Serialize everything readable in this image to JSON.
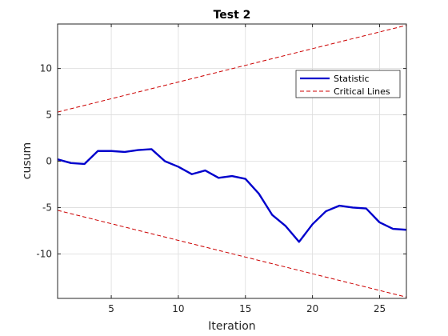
{
  "chart_data": {
    "type": "line",
    "title": "Test 2",
    "xlabel": "Iteration",
    "ylabel": "cusum",
    "xlim": [
      1,
      27
    ],
    "ylim": [
      -14.8,
      14.8
    ],
    "xticks": [
      5,
      10,
      15,
      20,
      25
    ],
    "yticks": [
      -10,
      -5,
      0,
      5,
      10
    ],
    "xtick_labels": [
      "5",
      "10",
      "15",
      "20",
      "25"
    ],
    "ytick_labels": [
      "-10",
      "-5",
      "0",
      "5",
      "10"
    ],
    "grid": true,
    "legend_position": "top-right",
    "x": [
      1,
      2,
      3,
      4,
      5,
      6,
      7,
      8,
      9,
      10,
      11,
      12,
      13,
      14,
      15,
      16,
      17,
      18,
      19,
      20,
      21,
      22,
      23,
      24,
      25,
      26,
      27
    ],
    "series": [
      {
        "name": "Statistic",
        "style": "solid",
        "color": "#0000cc",
        "values": [
          0.2,
          -0.2,
          -0.3,
          1.1,
          1.1,
          1.0,
          1.2,
          1.3,
          0.0,
          -0.6,
          -1.4,
          -1.0,
          -1.8,
          -1.6,
          -1.9,
          -3.5,
          -5.8,
          -7.0,
          -8.7,
          -6.8,
          -5.4,
          -4.8,
          -5.0,
          -5.1,
          -6.6,
          -7.3,
          -7.4
        ]
      },
      {
        "name": "Critical Lines",
        "style": "dashed",
        "color": "#cc0000",
        "values": [
          5.3,
          5.66,
          6.02,
          6.38,
          6.74,
          7.1,
          7.46,
          7.82,
          8.18,
          8.54,
          8.9,
          9.26,
          9.62,
          9.98,
          10.34,
          10.7,
          11.06,
          11.42,
          11.78,
          12.14,
          12.5,
          12.86,
          13.22,
          13.58,
          13.94,
          14.3,
          14.66
        ]
      },
      {
        "name": "",
        "style": "dashed",
        "color": "#cc0000",
        "values": [
          -5.3,
          -5.66,
          -6.02,
          -6.38,
          -6.74,
          -7.1,
          -7.46,
          -7.82,
          -8.18,
          -8.54,
          -8.9,
          -9.26,
          -9.62,
          -9.98,
          -10.34,
          -10.7,
          -11.06,
          -11.42,
          -11.78,
          -12.14,
          -12.5,
          -12.86,
          -13.22,
          -13.58,
          -13.94,
          -14.3,
          -14.66
        ]
      }
    ],
    "legend": [
      {
        "label": "Statistic",
        "style": "solid",
        "color": "#0000cc"
      },
      {
        "label": "Critical Lines",
        "style": "dashed",
        "color": "#cc0000"
      }
    ]
  }
}
